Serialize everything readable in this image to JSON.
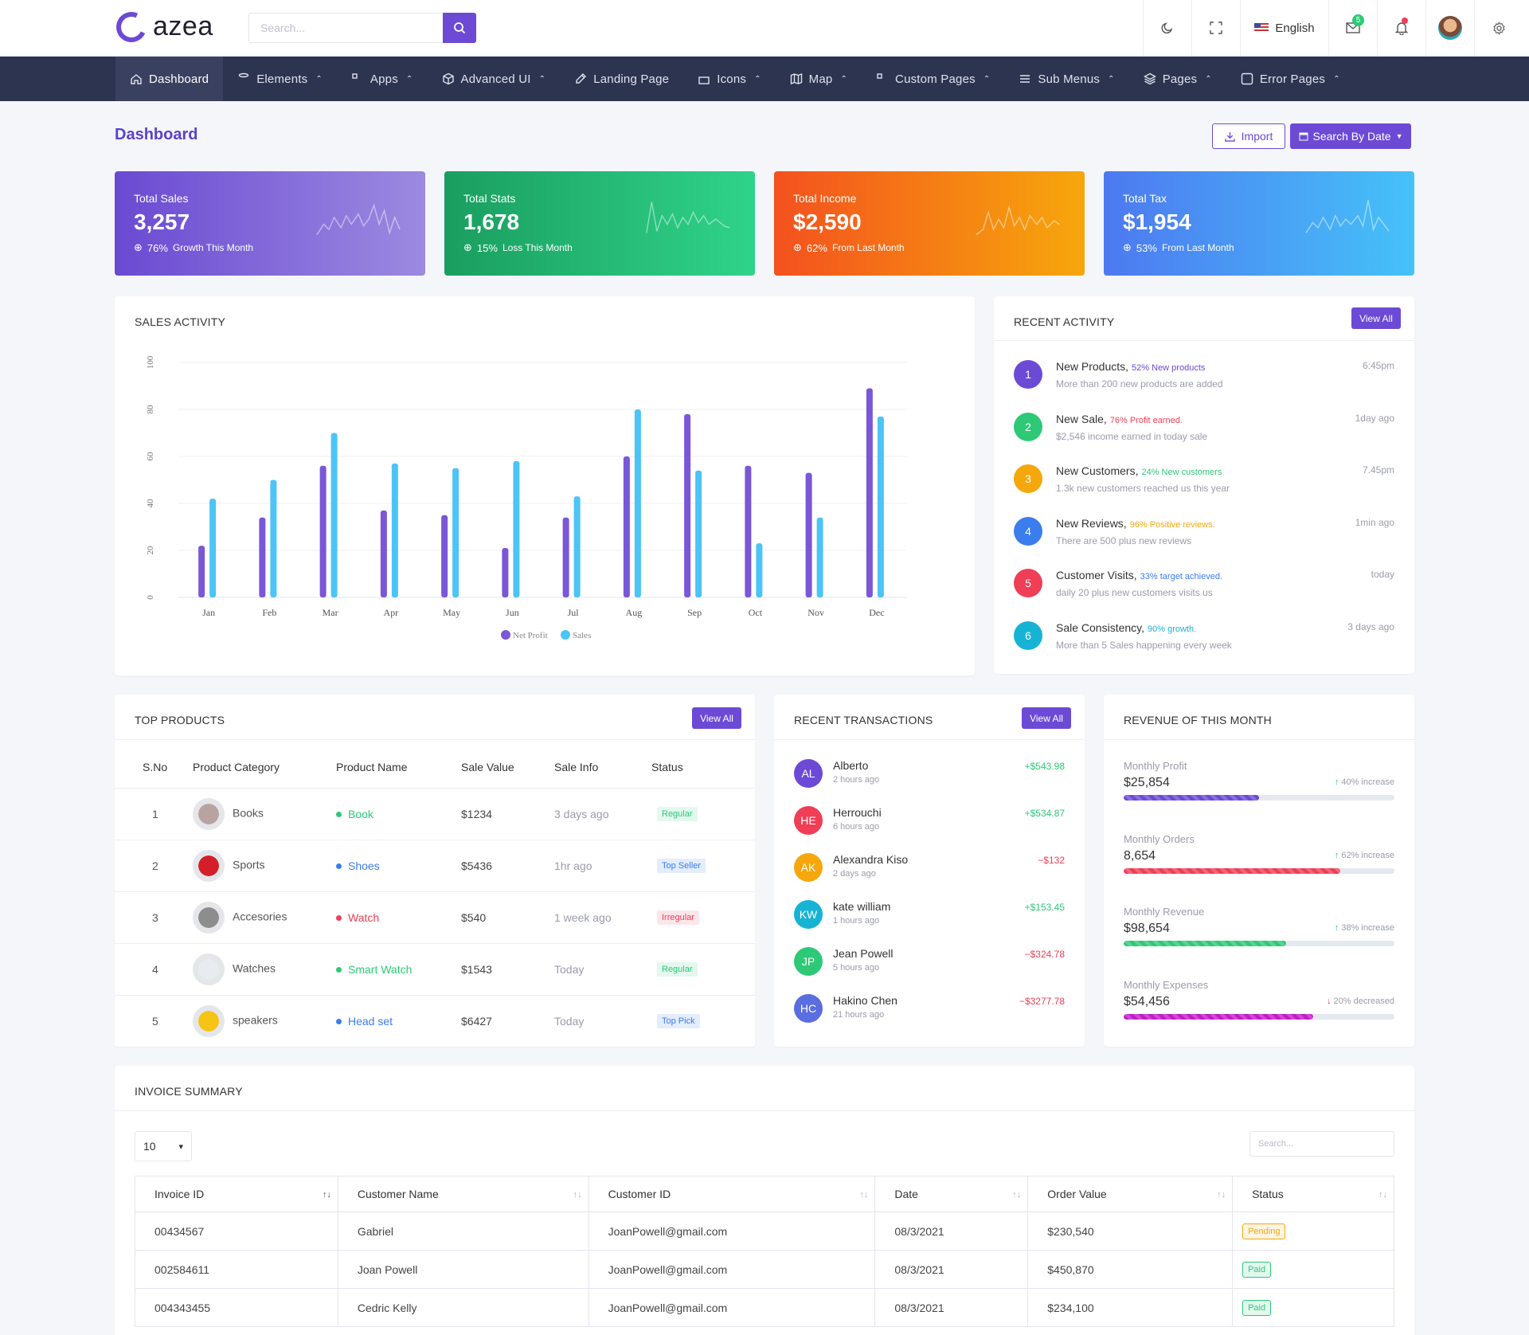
{
  "brand": {
    "name": "azea"
  },
  "header": {
    "search_placeholder": "Search...",
    "language": "English",
    "mail_count": "5"
  },
  "nav": [
    {
      "label": "Dashboard",
      "icon": "home-icon",
      "caret": false
    },
    {
      "label": "Elements",
      "icon": "database-icon",
      "caret": true
    },
    {
      "label": "Apps",
      "icon": "grid-icon",
      "caret": true
    },
    {
      "label": "Advanced UI",
      "icon": "box-icon",
      "caret": true
    },
    {
      "label": "Landing Page",
      "icon": "edit-icon",
      "caret": false
    },
    {
      "label": "Icons",
      "icon": "gift-icon",
      "caret": true
    },
    {
      "label": "Map",
      "icon": "map-icon",
      "caret": true
    },
    {
      "label": "Custom Pages",
      "icon": "grid-icon",
      "caret": true
    },
    {
      "label": "Sub Menus",
      "icon": "menu-icon",
      "caret": true
    },
    {
      "label": "Pages",
      "icon": "layers-icon",
      "caret": true
    },
    {
      "label": "Error Pages",
      "icon": "alert-icon",
      "caret": true
    }
  ],
  "page": {
    "title": "Dashboard",
    "import_label": "Import",
    "search_date_label": "Search By Date"
  },
  "stats": [
    {
      "label": "Total Sales",
      "value": "3,257",
      "pct": "76%",
      "note": "Growth This Month",
      "color_from": "#6a4ad2",
      "color_to": "#9c8ae0"
    },
    {
      "label": "Total Stats",
      "value": "1,678",
      "pct": "15%",
      "note": "Loss This Month",
      "color_from": "#1a9e5f",
      "color_to": "#2fd38a"
    },
    {
      "label": "Total Income",
      "value": "$2,590",
      "pct": "62%",
      "note": "From Last Month",
      "color_from": "#f4511e",
      "color_to": "#f6a70c"
    },
    {
      "label": "Total Tax",
      "value": "$1,954",
      "pct": "53%",
      "note": "From Last Month",
      "color_from": "#4d79f0",
      "color_to": "#45c2f8"
    }
  ],
  "sales_activity": {
    "title": "SALES ACTIVITY"
  },
  "chart_data": {
    "type": "bar",
    "title": "SALES ACTIVITY",
    "categories": [
      "Jan",
      "Feb",
      "Mar",
      "Apr",
      "May",
      "Jun",
      "Jul",
      "Aug",
      "Sep",
      "Oct",
      "Nov",
      "Dec"
    ],
    "series": [
      {
        "name": "Net Profit",
        "color": "#7a57d6",
        "values": [
          22,
          34,
          56,
          37,
          35,
          21,
          34,
          60,
          78,
          56,
          53,
          89
        ]
      },
      {
        "name": "Sales",
        "color": "#4cc4f6",
        "values": [
          42,
          50,
          70,
          57,
          55,
          58,
          43,
          80,
          54,
          23,
          34,
          77
        ]
      }
    ],
    "ylim": [
      0,
      100
    ],
    "yticks": [
      0,
      20,
      40,
      60,
      80,
      100
    ],
    "legend": "bottom",
    "grid": true
  },
  "recent_activity": {
    "title": "RECENT ACTIVITY",
    "view_all": "View All",
    "items": [
      {
        "num": "1",
        "color": "#6c4ad6",
        "title": "New Products,",
        "hl": "52% New products",
        "hl_color": "#6c4ad6",
        "desc": "More than 200 new products are added",
        "time": "6:45pm"
      },
      {
        "num": "2",
        "color": "#2ec977",
        "title": "New Sale,",
        "hl": "76% Profit earned.",
        "hl_color": "#ef3e56",
        "desc": "$2,546 income earned in today sale",
        "time": "1day ago"
      },
      {
        "num": "3",
        "color": "#f5a70c",
        "title": "New Customers,",
        "hl": "24% New customers",
        "hl_color": "#2ec977",
        "desc": "1.3k new customers reached us this year",
        "time": "7.45pm"
      },
      {
        "num": "4",
        "color": "#3b7ded",
        "title": "New Reviews,",
        "hl": "96% Positive reviews.",
        "hl_color": "#f5a70c",
        "desc": "There are 500 plus new reviews",
        "time": "1min ago"
      },
      {
        "num": "5",
        "color": "#ef3e56",
        "title": "Customer Visits,",
        "hl": "33% target achieved.",
        "hl_color": "#3b7ded",
        "desc": "daily 20 plus new customers visits us",
        "time": "today"
      },
      {
        "num": "6",
        "color": "#17b3d4",
        "title": "Sale Consistency,",
        "hl": "90% growth.",
        "hl_color": "#17b3d4",
        "desc": "More than 5 Sales happening every week",
        "time": "3 days ago"
      }
    ]
  },
  "top_products": {
    "title": "TOP PRODUCTS",
    "view_all": "View All",
    "headers": [
      "S.No",
      "Product Category",
      "Product Name",
      "Sale Value",
      "Sale Info",
      "Status"
    ],
    "rows": [
      {
        "sno": "1",
        "category": "Books",
        "name": "Book",
        "name_color": "#2ec977",
        "value": "$1234",
        "info": "3 days ago",
        "status": "Regular",
        "status_color": "#2ec977",
        "status_bg": "#e3f8ee",
        "img": "#b9a3a0"
      },
      {
        "sno": "2",
        "category": "Sports",
        "name": "Shoes",
        "name_color": "#3b7ded",
        "value": "$5436",
        "info": "1hr ago",
        "status": "Top Seller",
        "status_color": "#3b7ded",
        "status_bg": "#e4edfd",
        "img": "#d41f2a"
      },
      {
        "sno": "3",
        "category": "Accesories",
        "name": "Watch",
        "name_color": "#ef3e56",
        "value": "$540",
        "info": "1 week ago",
        "status": "Irregular",
        "status_color": "#ef3e56",
        "status_bg": "#fde6e9",
        "img": "#8d8d8d"
      },
      {
        "sno": "4",
        "category": "Watches",
        "name": "Smart Watch",
        "name_color": "#2ec977",
        "value": "$1543",
        "info": "Today",
        "status": "Regular",
        "status_color": "#2ec977",
        "status_bg": "#e3f8ee",
        "img": "#e8ebef"
      },
      {
        "sno": "5",
        "category": "speakers",
        "name": "Head set",
        "name_color": "#3b7ded",
        "value": "$6427",
        "info": "Today",
        "status": "Top Pick",
        "status_color": "#3b7ded",
        "status_bg": "#e4edfd",
        "img": "#f6c415"
      }
    ]
  },
  "recent_transactions": {
    "title": "RECENT TRANSACTIONS",
    "view_all": "View All",
    "items": [
      {
        "initials": "AL",
        "color": "#6c4ad6",
        "name": "Alberto",
        "time": "2 hours ago",
        "amount": "+$543.98",
        "amount_color": "#2ec977"
      },
      {
        "initials": "HE",
        "color": "#ef3e56",
        "name": "Herrouchi",
        "time": "6 hours ago",
        "amount": "+$534.87",
        "amount_color": "#2ec977"
      },
      {
        "initials": "AK",
        "color": "#f5a70c",
        "name": "Alexandra Kiso",
        "time": "2 days ago",
        "amount": "−$132",
        "amount_color": "#ef3e56"
      },
      {
        "initials": "KW",
        "color": "#17b3d4",
        "name": "kate william",
        "time": "1 hours ago",
        "amount": "+$153.45",
        "amount_color": "#2ec977"
      },
      {
        "initials": "JP",
        "color": "#2ec977",
        "name": "Jean Powell",
        "time": "5 hours ago",
        "amount": "−$324.78",
        "amount_color": "#ef3e56"
      },
      {
        "initials": "HC",
        "color": "#5b6ee0",
        "name": "Hakino Chen",
        "time": "21 hours ago",
        "amount": "−$3277.78",
        "amount_color": "#ef3e56"
      }
    ]
  },
  "revenue": {
    "title": "REVENUE OF THIS MONTH",
    "items": [
      {
        "label": "Monthly Profit",
        "value": "$25,854",
        "change": "40% increase",
        "dir": "up",
        "progress": 0.5,
        "color": "#6c4ad6"
      },
      {
        "label": "Monthly Orders",
        "value": "8,654",
        "change": "62% increase",
        "dir": "up",
        "progress": 0.8,
        "color": "#ef3e56"
      },
      {
        "label": "Monthly Revenue",
        "value": "$98,654",
        "change": "38% increase",
        "dir": "up",
        "progress": 0.6,
        "color": "#2ec977"
      },
      {
        "label": "Monthly Expenses",
        "value": "$54,456",
        "change": "20% decreased",
        "dir": "down",
        "progress": 0.7,
        "color": "#c21cc9"
      }
    ]
  },
  "invoice": {
    "title": "INVOICE SUMMARY",
    "page_size": "10",
    "search_placeholder": "Search...",
    "headers": [
      "Invoice ID",
      "Customer Name",
      "Customer ID",
      "Date",
      "Order Value",
      "Status"
    ],
    "rows": [
      {
        "id": "00434567",
        "name": "Gabriel",
        "cid": "JoanPowell@gmail.com",
        "date": "08/3/2021",
        "value": "$230,540",
        "status": "Pending",
        "status_color": "#f5a70c",
        "status_bg": "#fef5e2"
      },
      {
        "id": "002584611",
        "name": "Joan Powell",
        "cid": "JoanPowell@gmail.com",
        "date": "08/3/2021",
        "value": "$450,870",
        "status": "Paid",
        "status_color": "#2ec977",
        "status_bg": "#e3f8ee"
      },
      {
        "id": "004343455",
        "name": "Cedric Kelly",
        "cid": "JoanPowell@gmail.com",
        "date": "08/3/2021",
        "value": "$234,100",
        "status": "Paid",
        "status_color": "#2ec977",
        "status_bg": "#e3f8ee"
      }
    ]
  }
}
